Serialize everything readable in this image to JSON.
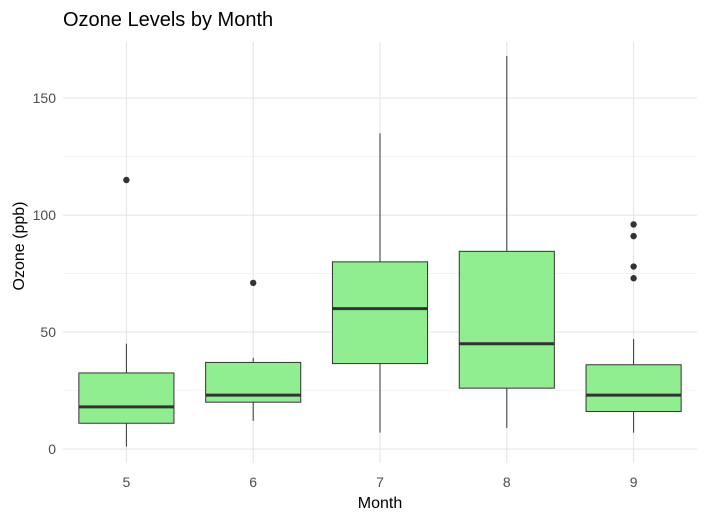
{
  "chart_data": {
    "type": "boxplot",
    "title": "Ozone Levels by Month",
    "xlabel": "Month",
    "ylabel": "Ozone (ppb)",
    "categories": [
      "5",
      "6",
      "7",
      "8",
      "9"
    ],
    "y_ticks": [
      0,
      50,
      100,
      150
    ],
    "y_tick_labels": [
      "0",
      "50",
      "100",
      "150"
    ],
    "ylim": [
      -6,
      174
    ],
    "grid": true,
    "box_fill": "#90EE90",
    "box_stroke": "#333333",
    "boxes": [
      {
        "category": "5",
        "whisker_low": 1,
        "q1": 11,
        "median": 18,
        "q3": 32.5,
        "whisker_high": 45,
        "outliers": [
          115
        ]
      },
      {
        "category": "6",
        "whisker_low": 12,
        "q1": 20,
        "median": 23,
        "q3": 37,
        "whisker_high": 39,
        "outliers": [
          71
        ]
      },
      {
        "category": "7",
        "whisker_low": 7,
        "q1": 36.5,
        "median": 60,
        "q3": 80,
        "whisker_high": 135,
        "outliers": []
      },
      {
        "category": "8",
        "whisker_low": 9,
        "q1": 26,
        "median": 45,
        "q3": 84.5,
        "whisker_high": 168,
        "outliers": []
      },
      {
        "category": "9",
        "whisker_low": 7,
        "q1": 16,
        "median": 23,
        "q3": 36,
        "whisker_high": 47,
        "outliers": [
          73,
          78,
          91,
          96
        ]
      }
    ]
  }
}
